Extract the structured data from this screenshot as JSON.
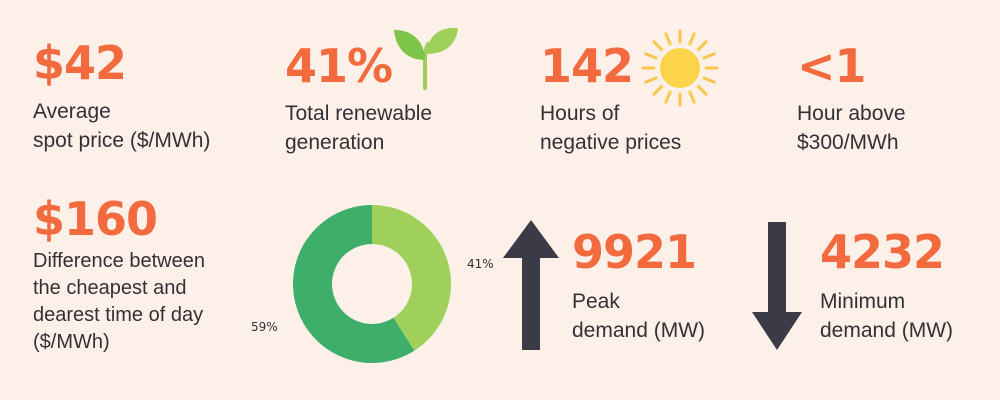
{
  "stats": {
    "avg_price": {
      "value": "$42",
      "label": "Average\nspot price ($/MWh)"
    },
    "renewable": {
      "value": "41%",
      "label": "Total renewable\ngeneration"
    },
    "negative_hours": {
      "value": "142",
      "label": "Hours of\nnegative prices"
    },
    "high_price_hours": {
      "value": "<1",
      "label": "Hour above\n$300/MWh"
    },
    "price_difference": {
      "value": "$160",
      "label": "Difference between\nthe cheapest and\ndearest time of day\n($/MWh)"
    },
    "peak_demand": {
      "value": "9921",
      "label": "Peak\ndemand (MW)"
    },
    "min_demand": {
      "value": "4232",
      "label": "Minimum\ndemand (MW)"
    }
  },
  "chart_data": {
    "type": "pie",
    "categories": [
      "41%",
      "59%"
    ],
    "values": [
      41,
      59
    ],
    "colors": [
      "#9fd05a",
      "#3daf6a"
    ]
  },
  "icons": [
    "sprout-icon",
    "sun-icon",
    "arrow-up-icon",
    "arrow-down-icon"
  ],
  "colors": {
    "accent": "#f26a3d",
    "text": "#333036",
    "background": "#fdf0e8",
    "arrow": "#3b3b47"
  }
}
